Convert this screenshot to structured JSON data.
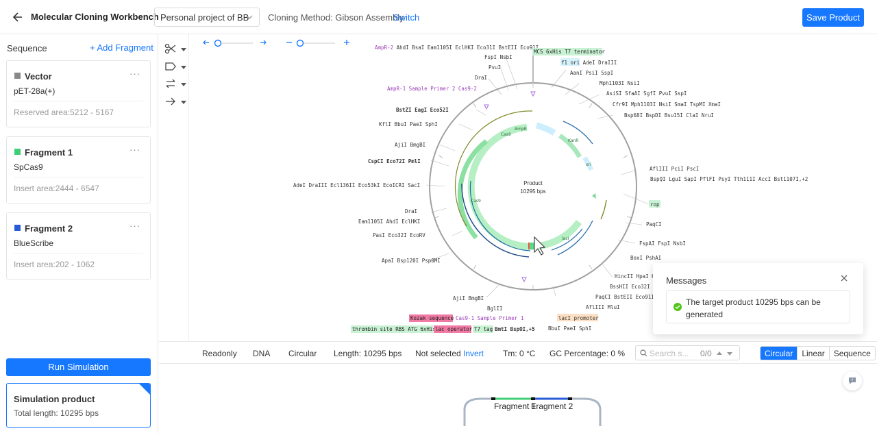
{
  "header": {
    "title": "Molecular Cloning Workbench",
    "project": "Personal project of BB",
    "method": "Cloning Method: Gibson Assembly",
    "switch_label": "Switch",
    "save_label": "Save Product"
  },
  "sidebar": {
    "section_label": "Sequence",
    "add_fragment": "Add Fragment",
    "cards": [
      {
        "title": "Vector",
        "name": "pET-28a(+)",
        "area": "Reserved area:5212 - 5167",
        "color": "#888888"
      },
      {
        "title": "Fragment 1",
        "name": "SpCas9",
        "area": "Insert area:2444 - 6547",
        "color": "#3ecf74"
      },
      {
        "title": "Fragment 2",
        "name": "BlueScribe",
        "area": "Insert area:202 - 1062",
        "color": "#2a5bd7"
      }
    ],
    "more": "···",
    "run_label": "Run Simulation",
    "product_title": "Simulation product",
    "product_length": "Total length: 10295 bps"
  },
  "map": {
    "center_title": "Product",
    "center_len": "10295 bps",
    "labels_left": [
      {
        "t": "AmpR-2",
        "b": "AhdI BsaI Eam1105I EclHKI Eco31I BstEII Eco91I"
      },
      {
        "t": "",
        "b": "FspI NsbI"
      },
      {
        "t": "",
        "b": "PvuI"
      },
      {
        "t": "",
        "b": "DraI"
      },
      {
        "t": "AmpR-1 Sample Primer 2 Cas9-2",
        "b": ""
      },
      {
        "t": "",
        "b": "BstZI EagI Eco52I"
      },
      {
        "t": "",
        "b": "KflI BbuI PaeI SphI"
      },
      {
        "t": "",
        "b": "AjiI BmgBI"
      },
      {
        "t": "",
        "b": "CspCI Eco72I PmlI"
      },
      {
        "t": "",
        "b": "AdeI DraIII Ecl136II Eco53kI EcoICRI SacI"
      },
      {
        "t": "",
        "b": "DraI"
      },
      {
        "t": "",
        "b": "Eam1105I AhdI EclHKI"
      },
      {
        "t": "",
        "b": "PasI Eco32I EcoRV"
      },
      {
        "t": "",
        "b": "ApaI Bsp120I Psp0MI"
      },
      {
        "t": "",
        "b": "AjiI BmgBI"
      },
      {
        "t": "",
        "b": "BglII"
      }
    ],
    "labels_right": [
      "f1 ori AdeI DraIII",
      "AanI PsiI SspI",
      "Mph1103I NsiI",
      "AsiSI SfaAI SgfI PvuI SspI",
      "Cfr9I Mph1103I NsiI SmaI TspMI XmaI",
      "Bsp68I BspDI Bsu15I ClaI NruI",
      "AflIII PciI PscI",
      "BspQI LguI SapI PflFI PsyI Tth111I AccI Bst1107I,+2",
      "rop",
      "PaqCI",
      "FspAI FspI NsbI",
      "BoxI PshAI",
      "HincII HpaI K",
      "BssHII Eco32I E",
      "PaqCI BstEII Eco91I",
      "AflIII MluI",
      "lacI promoter",
      "BbuI PaeI SphI"
    ],
    "top_feature": "MCS 6xHis T7 terminator",
    "kozak": "Kozak sequence",
    "cas_primer": "Cas9-1 Sample Primer 1",
    "bottom_feature_a": "thrombin site RBS ATG 6xHis",
    "bottom_feature_b": "lac operator",
    "bottom_feature_c": "T7 tag",
    "bottom_sites": "BmtI BspOI,+5",
    "arc_labels": [
      "AmpR",
      "Cas9",
      "Cas9",
      "KanR",
      "ori",
      "lacI"
    ]
  },
  "status": {
    "mode": "Readonly",
    "type": "DNA",
    "topology": "Circular",
    "length": "Length: 10295 bps",
    "selection": "Not selected",
    "invert": "Invert",
    "tm": "Tm: 0 °C",
    "gc": "GC Percentage: 0 %",
    "search_placeholder": "Search s...",
    "search_count": "0/0",
    "views": [
      "Circular",
      "Linear",
      "Sequence"
    ]
  },
  "bottom": {
    "fragment1": "Fragment 1",
    "fragment2": "Fragment 2"
  },
  "message": {
    "title": "Messages",
    "text": "The target product 10295 bps can be generated"
  }
}
